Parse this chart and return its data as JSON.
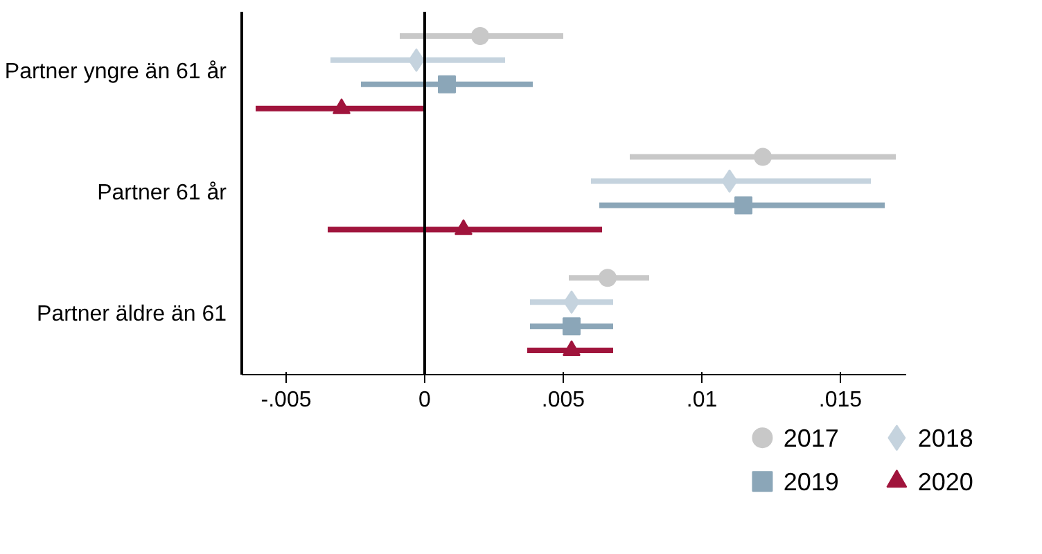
{
  "chart_data": {
    "type": "scatter",
    "orientation": "horizontal",
    "categories": [
      "Partner yngre än 61 år",
      "Partner 61 år",
      "Partner äldre än 61"
    ],
    "series": [
      {
        "name": "2017",
        "color": "#c8c8c8",
        "marker": "circle",
        "values": [
          0.002,
          0.0122,
          0.0066
        ],
        "errors": [
          [
            -0.0009,
            0.005
          ],
          [
            0.0074,
            0.017
          ],
          [
            0.0052,
            0.0081
          ]
        ]
      },
      {
        "name": "2018",
        "color": "#c5d3de",
        "marker": "diamond",
        "values": [
          -0.0003,
          0.011,
          0.0053
        ],
        "errors": [
          [
            -0.0034,
            0.0029
          ],
          [
            0.006,
            0.0161
          ],
          [
            0.0038,
            0.0068
          ]
        ]
      },
      {
        "name": "2019",
        "color": "#8ba6b8",
        "marker": "square",
        "values": [
          0.0008,
          0.0115,
          0.0053
        ],
        "errors": [
          [
            -0.0023,
            0.0039
          ],
          [
            0.0063,
            0.0166
          ],
          [
            0.0038,
            0.0068
          ]
        ]
      },
      {
        "name": "2020",
        "color": "#a0143c",
        "marker": "triangle",
        "values": [
          -0.003,
          0.0014,
          0.0053
        ],
        "errors": [
          [
            -0.0061,
            0.0
          ],
          [
            -0.0035,
            0.0064
          ],
          [
            0.0037,
            0.0068
          ]
        ]
      }
    ],
    "xlim": [
      -0.0066,
      0.0174
    ],
    "xticks": [
      {
        "value": -0.005,
        "label": "-.005"
      },
      0,
      {
        "value": 0.005,
        "label": ".005"
      },
      {
        "value": 0.01,
        "label": ".01"
      },
      {
        "value": 0.015,
        "label": ".015"
      }
    ],
    "ref_lines": [
      {
        "axis": "x",
        "value": 0,
        "color": "#000000"
      }
    ],
    "grid": false,
    "legend": "bottom"
  }
}
